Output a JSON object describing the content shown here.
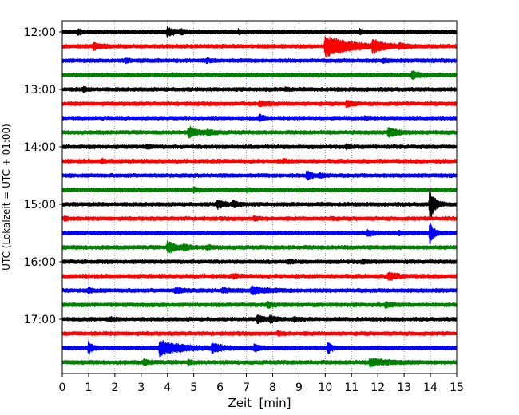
{
  "chart_data": {
    "type": "line",
    "title": "",
    "xlabel": "Zeit  [min]",
    "ylabel": "UTC (Lokalzeit = UTC + 01:00)",
    "xlim": [
      0,
      15
    ],
    "x_ticks": [
      "0",
      "1",
      "2",
      "3",
      "4",
      "5",
      "6",
      "7",
      "8",
      "9",
      "10",
      "11",
      "12",
      "13",
      "14",
      "15"
    ],
    "y_ticks": [
      "12:00",
      "13:00",
      "14:00",
      "15:00",
      "16:00",
      "17:00"
    ],
    "grid": "vertical-dotted",
    "trace_interval_minutes": 15,
    "start_time": "12:00",
    "trace_color_cycle": [
      "#000000",
      "#ff0000",
      "#0000ff",
      "#008000"
    ],
    "series": [
      {
        "start": "12:00",
        "events": [
          {
            "t": 0.6,
            "amp": 0.35,
            "dur": 0.2
          },
          {
            "t": 4.0,
            "amp": 0.6,
            "dur": 0.6
          },
          {
            "t": 4.5,
            "amp": 0.35,
            "dur": 0.3
          },
          {
            "t": 6.7,
            "amp": 0.25,
            "dur": 0.3
          },
          {
            "t": 11.3,
            "amp": 0.25,
            "dur": 0.3
          }
        ]
      },
      {
        "start": "12:15",
        "events": [
          {
            "t": 1.2,
            "amp": 0.5,
            "dur": 0.5
          },
          {
            "t": 10.0,
            "amp": 1.6,
            "dur": 1.8
          },
          {
            "t": 11.8,
            "amp": 0.9,
            "dur": 0.7
          },
          {
            "t": 12.8,
            "amp": 0.3,
            "dur": 0.4
          }
        ]
      },
      {
        "start": "12:30",
        "events": [
          {
            "t": 2.4,
            "amp": 0.25,
            "dur": 0.3
          },
          {
            "t": 5.5,
            "amp": 0.2,
            "dur": 0.3
          },
          {
            "t": 12.2,
            "amp": 0.2,
            "dur": 0.3
          }
        ]
      },
      {
        "start": "12:45",
        "events": [
          {
            "t": 13.3,
            "amp": 0.5,
            "dur": 0.6
          },
          {
            "t": 4.2,
            "amp": 0.2,
            "dur": 0.3
          }
        ]
      },
      {
        "start": "13:00",
        "events": [
          {
            "t": 0.8,
            "amp": 0.25,
            "dur": 0.3
          },
          {
            "t": 8.5,
            "amp": 0.2,
            "dur": 0.3
          }
        ]
      },
      {
        "start": "13:15",
        "events": [
          {
            "t": 7.5,
            "amp": 0.35,
            "dur": 0.5
          },
          {
            "t": 10.8,
            "amp": 0.45,
            "dur": 0.4
          }
        ]
      },
      {
        "start": "13:30",
        "events": [
          {
            "t": 7.5,
            "amp": 0.45,
            "dur": 0.3
          },
          {
            "t": 11.5,
            "amp": 0.2,
            "dur": 0.3
          }
        ]
      },
      {
        "start": "13:45",
        "events": [
          {
            "t": 4.8,
            "amp": 0.8,
            "dur": 0.6
          },
          {
            "t": 5.5,
            "amp": 0.4,
            "dur": 0.4
          },
          {
            "t": 12.4,
            "amp": 0.7,
            "dur": 0.7
          }
        ]
      },
      {
        "start": "14:00",
        "events": [
          {
            "t": 3.2,
            "amp": 0.2,
            "dur": 0.3
          },
          {
            "t": 10.8,
            "amp": 0.2,
            "dur": 0.3
          }
        ]
      },
      {
        "start": "14:15",
        "events": [
          {
            "t": 1.5,
            "amp": 0.25,
            "dur": 0.3
          },
          {
            "t": 8.4,
            "amp": 0.2,
            "dur": 0.3
          }
        ]
      },
      {
        "start": "14:30",
        "events": [
          {
            "t": 9.3,
            "amp": 0.6,
            "dur": 0.4
          },
          {
            "t": 9.8,
            "amp": 0.3,
            "dur": 0.3
          }
        ]
      },
      {
        "start": "14:45",
        "events": [
          {
            "t": 5.0,
            "amp": 0.25,
            "dur": 0.3
          },
          {
            "t": 7.0,
            "amp": 0.2,
            "dur": 0.3
          }
        ]
      },
      {
        "start": "15:00",
        "events": [
          {
            "t": 5.9,
            "amp": 0.6,
            "dur": 0.5
          },
          {
            "t": 6.5,
            "amp": 0.4,
            "dur": 0.4
          },
          {
            "t": 13.98,
            "amp": 2.5,
            "dur": 0.35
          }
        ]
      },
      {
        "start": "15:15",
        "events": [
          {
            "t": 0.1,
            "amp": 0.3,
            "dur": 0.2
          },
          {
            "t": 7.3,
            "amp": 0.25,
            "dur": 0.3
          },
          {
            "t": 10.2,
            "amp": 0.2,
            "dur": 0.3
          }
        ]
      },
      {
        "start": "15:30",
        "events": [
          {
            "t": 11.6,
            "amp": 0.35,
            "dur": 0.5
          },
          {
            "t": 12.8,
            "amp": 0.2,
            "dur": 0.3
          },
          {
            "t": 13.98,
            "amp": 1.6,
            "dur": 0.3
          }
        ]
      },
      {
        "start": "15:45",
        "events": [
          {
            "t": 4.0,
            "amp": 0.9,
            "dur": 0.6
          },
          {
            "t": 4.6,
            "amp": 0.4,
            "dur": 0.4
          },
          {
            "t": 5.5,
            "amp": 0.3,
            "dur": 0.3
          }
        ]
      },
      {
        "start": "16:00",
        "events": [
          {
            "t": 8.6,
            "amp": 0.2,
            "dur": 0.3
          },
          {
            "t": 11.4,
            "amp": 0.2,
            "dur": 0.3
          }
        ]
      },
      {
        "start": "16:15",
        "events": [
          {
            "t": 12.4,
            "amp": 0.6,
            "dur": 0.6
          },
          {
            "t": 6.5,
            "amp": 0.2,
            "dur": 0.3
          }
        ]
      },
      {
        "start": "16:30",
        "events": [
          {
            "t": 1.0,
            "amp": 0.3,
            "dur": 0.4
          },
          {
            "t": 4.3,
            "amp": 0.35,
            "dur": 0.6
          },
          {
            "t": 6.1,
            "amp": 0.3,
            "dur": 0.5
          },
          {
            "t": 7.2,
            "amp": 0.55,
            "dur": 1.0
          }
        ]
      },
      {
        "start": "16:45",
        "events": [
          {
            "t": 7.8,
            "amp": 0.35,
            "dur": 0.4
          },
          {
            "t": 12.3,
            "amp": 0.35,
            "dur": 0.4
          }
        ]
      },
      {
        "start": "17:00",
        "events": [
          {
            "t": 1.8,
            "amp": 0.2,
            "dur": 0.3
          },
          {
            "t": 7.4,
            "amp": 0.6,
            "dur": 0.5
          },
          {
            "t": 7.9,
            "amp": 0.4,
            "dur": 0.4
          },
          {
            "t": 8.8,
            "amp": 0.3,
            "dur": 0.3
          }
        ]
      },
      {
        "start": "17:15",
        "events": [
          {
            "t": 8.2,
            "amp": 0.25,
            "dur": 0.3
          }
        ]
      },
      {
        "start": "17:30",
        "events": [
          {
            "t": 1.0,
            "amp": 1.0,
            "dur": 0.25
          },
          {
            "t": 3.7,
            "amp": 1.1,
            "dur": 1.6
          },
          {
            "t": 5.7,
            "amp": 0.6,
            "dur": 0.7
          },
          {
            "t": 7.3,
            "amp": 0.4,
            "dur": 0.5
          },
          {
            "t": 10.1,
            "amp": 1.0,
            "dur": 0.25
          }
        ]
      },
      {
        "start": "17:45",
        "events": [
          {
            "t": 3.1,
            "amp": 0.35,
            "dur": 0.4
          },
          {
            "t": 4.8,
            "amp": 0.25,
            "dur": 0.3
          },
          {
            "t": 11.7,
            "amp": 0.55,
            "dur": 1.2
          }
        ]
      }
    ]
  }
}
